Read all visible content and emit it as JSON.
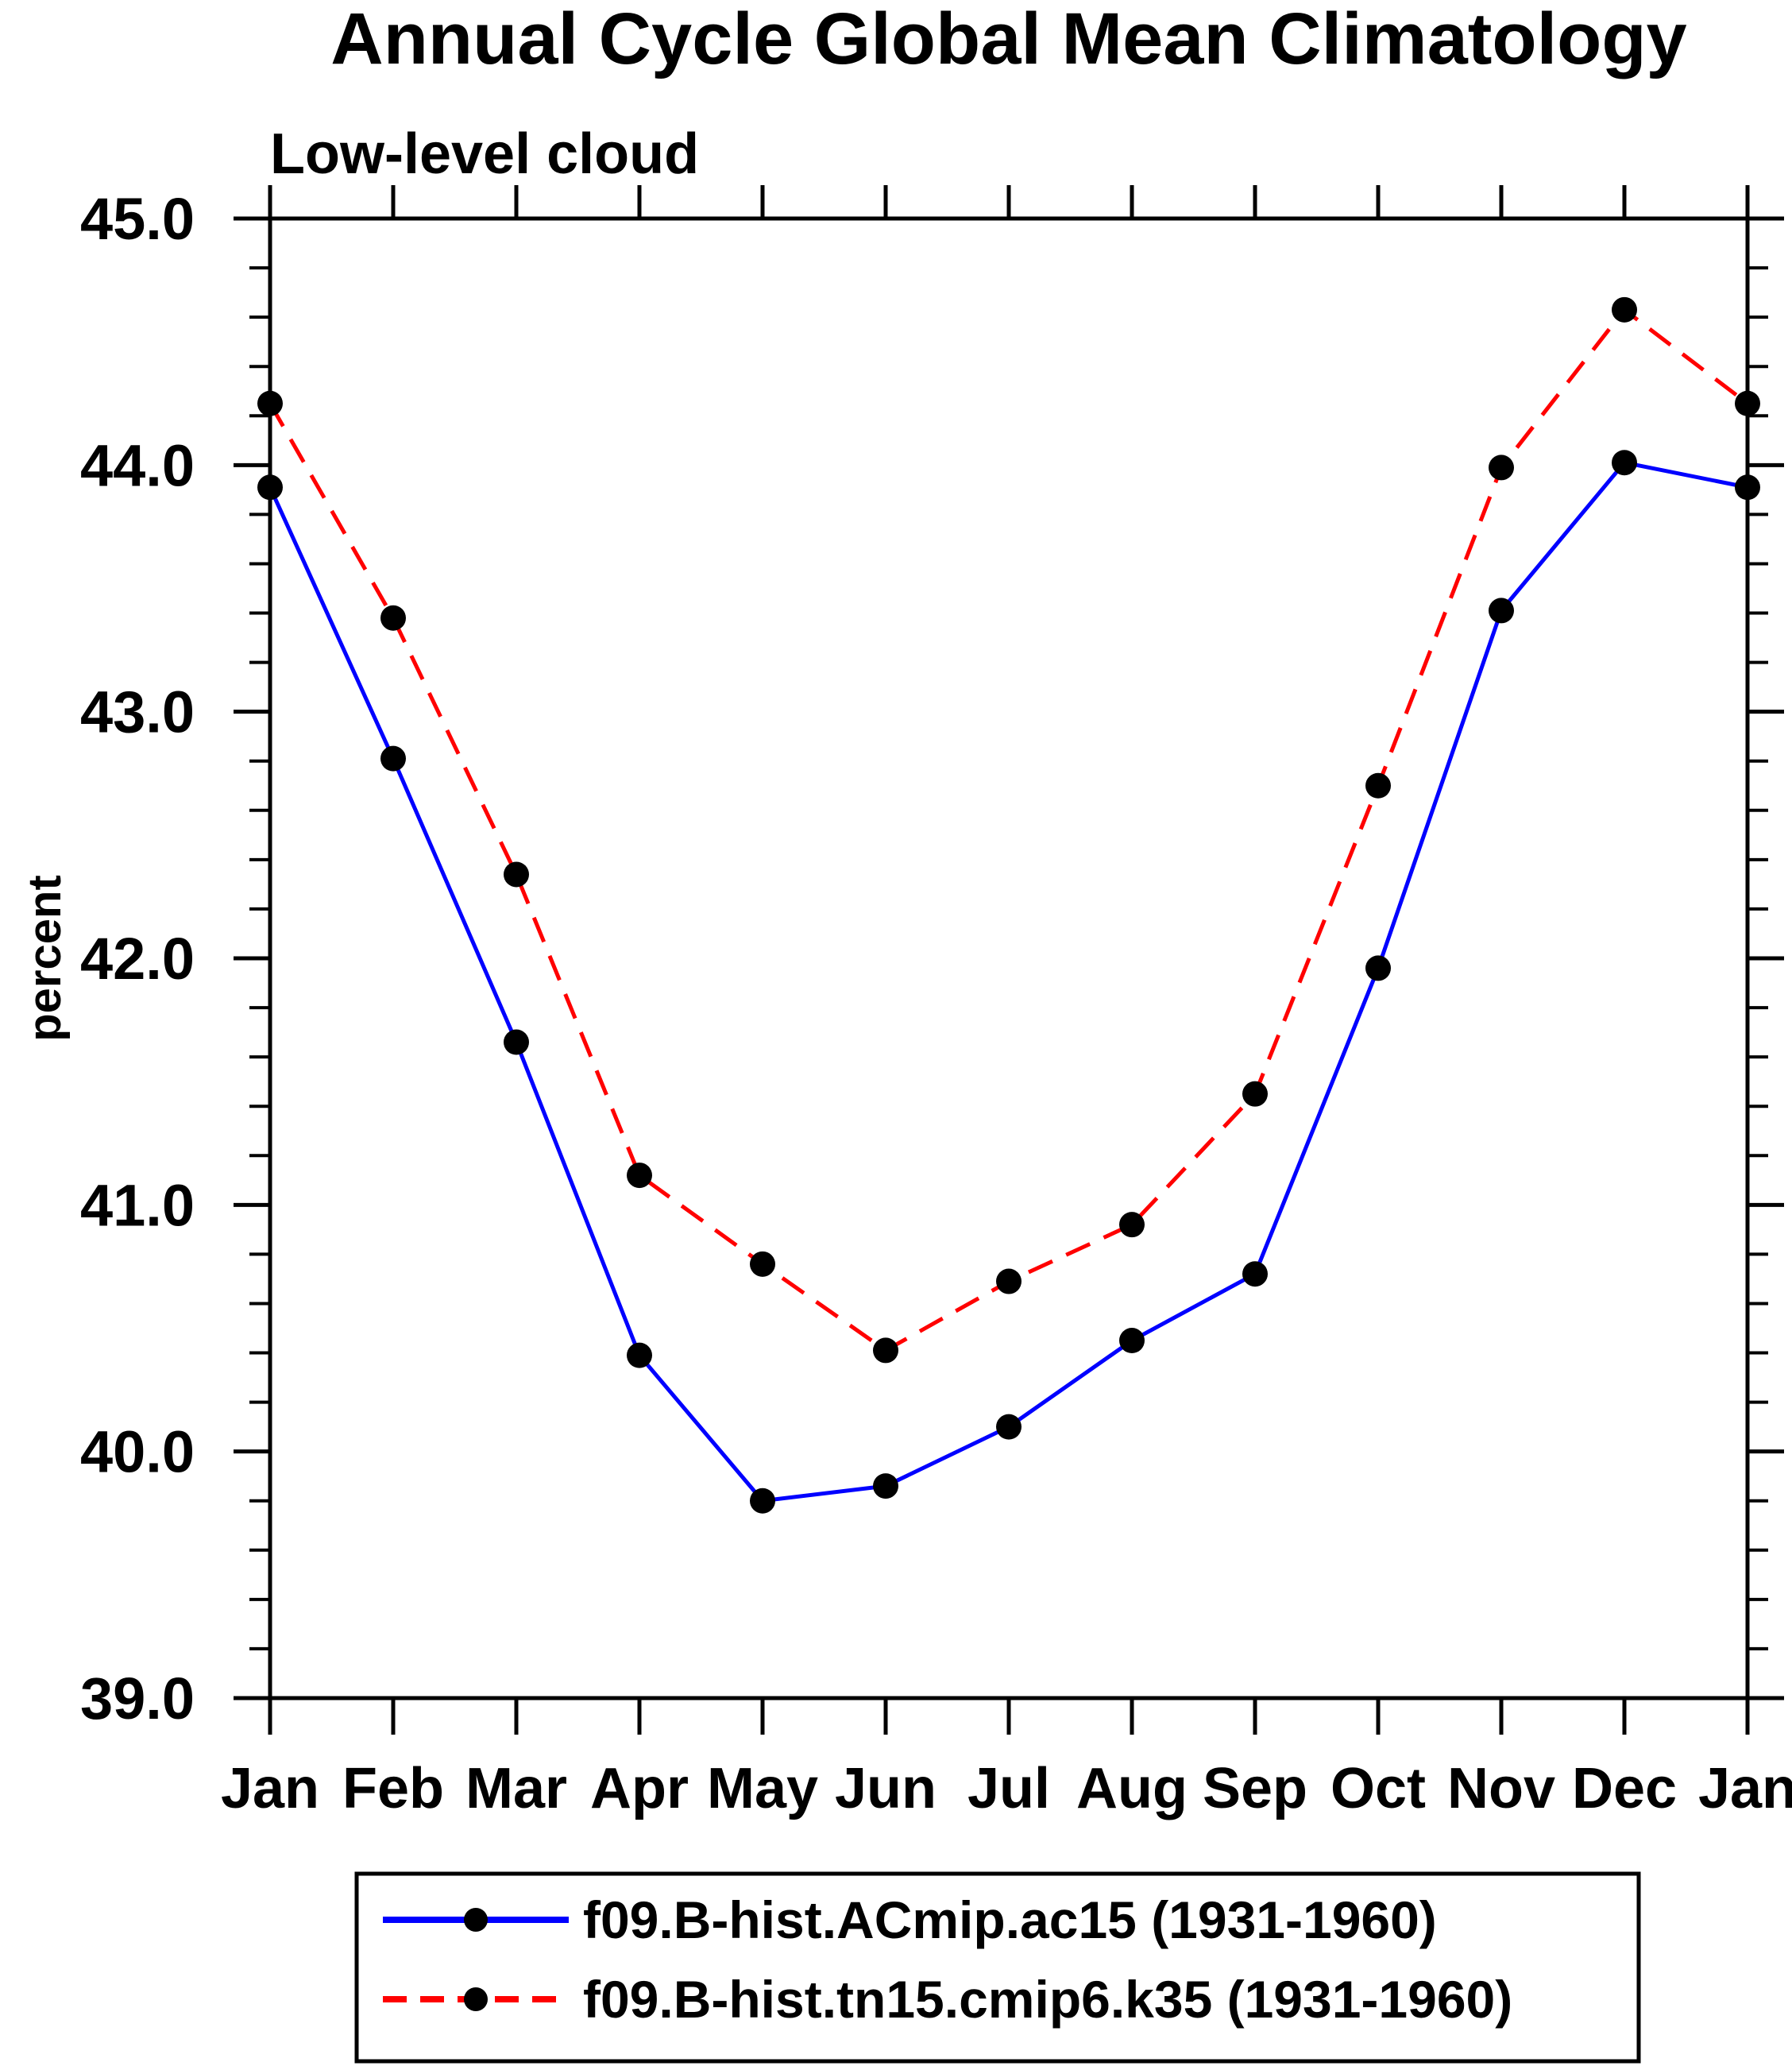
{
  "title": "Annual Cycle Global Mean Climatology",
  "subtitle": "Low-level cloud",
  "chart_data": {
    "type": "line",
    "title": "Annual Cycle Global Mean Climatology",
    "subtitle": "Low-level cloud",
    "ylabel": "percent",
    "xlabel": "",
    "categories": [
      "Jan",
      "Feb",
      "Mar",
      "Apr",
      "May",
      "Jun",
      "Jul",
      "Aug",
      "Sep",
      "Oct",
      "Nov",
      "Dec",
      "Jan"
    ],
    "series": [
      {
        "name": "f09.B-hist.ACmip.ac15 (1931-1960)",
        "color": "#0000ff",
        "line_style": "solid",
        "marker": "filled-circle",
        "marker_color": "#000000",
        "values": [
          43.91,
          42.81,
          41.66,
          40.39,
          39.8,
          39.86,
          40.1,
          40.45,
          40.72,
          41.96,
          43.41,
          44.01,
          43.91
        ]
      },
      {
        "name": "f09.B-hist.tn15.cmip6.k35 (1931-1960)",
        "color": "#ff0000",
        "line_style": "dashed",
        "marker": "filled-circle",
        "marker_color": "#000000",
        "values": [
          44.25,
          43.38,
          42.34,
          41.12,
          40.76,
          40.41,
          40.69,
          40.92,
          41.45,
          42.7,
          43.99,
          44.63,
          44.25
        ]
      }
    ],
    "ylim": [
      39.0,
      45.0
    ],
    "ytick_major_step": 1.0,
    "ytick_minor_step": 0.2,
    "ytick_labels": [
      "39.0",
      "40.0",
      "41.0",
      "42.0",
      "43.0",
      "44.0",
      "45.0"
    ],
    "grid": false,
    "legend_position": "bottom"
  }
}
